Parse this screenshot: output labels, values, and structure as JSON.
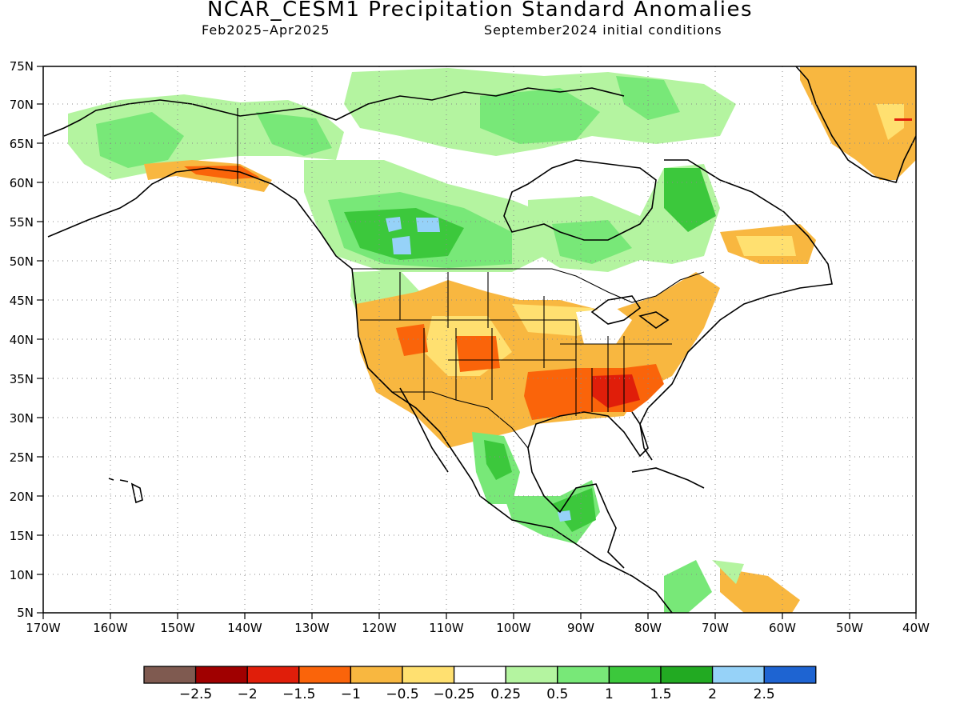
{
  "title": "NCAR_CESM1 Precipitation Standard Anomalies",
  "subtitle_left": "Feb2025–Apr2025",
  "subtitle_right": "September2024 initial conditions",
  "lat_labels": [
    "75N",
    "70N",
    "65N",
    "60N",
    "55N",
    "50N",
    "45N",
    "40N",
    "35N",
    "30N",
    "25N",
    "20N",
    "15N",
    "10N",
    "5N"
  ],
  "lon_labels": [
    "170W",
    "160W",
    "150W",
    "140W",
    "130W",
    "120W",
    "110W",
    "100W",
    "90W",
    "80W",
    "70W",
    "60W",
    "50W",
    "40W"
  ],
  "colorbar": {
    "colors": [
      "#7f5a50",
      "#a00000",
      "#e01e0a",
      "#fa640a",
      "#f8b740",
      "#ffe070",
      "#ffffff",
      "#b4f4a0",
      "#78e878",
      "#3cc83c",
      "#22aa22",
      "#96d2f8",
      "#1e64d2"
    ],
    "labels": [
      "−2.5",
      "−2",
      "−1.5",
      "−1",
      "−0.5",
      "−0.25",
      "0.25",
      "0.5",
      "1",
      "1.5",
      "2",
      "2.5"
    ]
  }
}
